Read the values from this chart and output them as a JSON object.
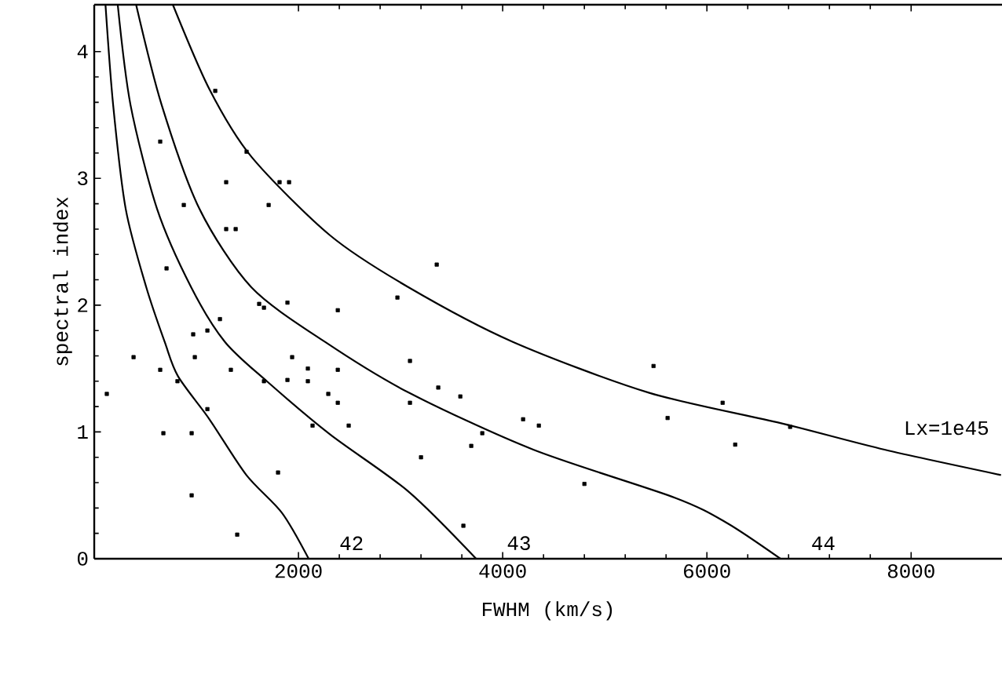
{
  "chart_data": {
    "type": "scatter",
    "xlabel": "FWHM (km/s)",
    "ylabel": "spectral index",
    "xlim": [
      0,
      8890
    ],
    "ylim": [
      0,
      4.37
    ],
    "xticks": [
      2000,
      4000,
      6000,
      8000
    ],
    "yticks": [
      0,
      1,
      2,
      3,
      4
    ],
    "grid": false,
    "series": [
      {
        "type": "line",
        "name": "42",
        "color": "#000000",
        "x": [
          110,
          185,
          308,
          510,
          690,
          820,
          1128,
          1490,
          1840,
          2100
        ],
        "values": [
          4.37,
          3.58,
          2.76,
          2.14,
          1.71,
          1.44,
          1.1,
          0.66,
          0.36,
          0
        ]
      },
      {
        "type": "line",
        "name": "43",
        "color": "#000000",
        "x": [
          230,
          355,
          615,
          950,
          1280,
          1690,
          2310,
          3077,
          3740
        ],
        "values": [
          4.37,
          3.58,
          2.76,
          2.14,
          1.71,
          1.4,
          0.98,
          0.53,
          0
        ]
      },
      {
        "type": "line",
        "name": "44",
        "color": "#000000",
        "x": [
          410,
          660,
          1030,
          1540,
          2260,
          3080,
          4300,
          5690,
          6200,
          6720
        ],
        "values": [
          4.37,
          3.58,
          2.76,
          2.14,
          1.71,
          1.31,
          0.86,
          0.48,
          0.28,
          0
        ]
      },
      {
        "type": "line",
        "name": "Lx=1e45",
        "color": "#000000",
        "x": [
          770,
          1130,
          1540,
          2310,
          3080,
          4100,
          5430,
          6720,
          7740,
          8880
        ],
        "values": [
          4.37,
          3.7,
          3.17,
          2.55,
          2.14,
          1.71,
          1.31,
          1.07,
          0.86,
          0.66
        ]
      },
      {
        "marker": "square",
        "color": "#000000",
        "x": [
          1185,
          646,
          1492,
          1292,
          1815,
          1908,
          877,
          1708,
          1292,
          1385,
          3354,
          708,
          2969,
          1615,
          1662,
          2385,
          1892,
          1231,
          969,
          1108,
          385,
          646,
          985,
          1338,
          1938,
          2092,
          2092,
          2385,
          1892,
          1662,
          815,
          123,
          2292,
          2385,
          3092,
          3369,
          3585,
          3092,
          1108,
          4200,
          4354,
          2492,
          2138,
          677,
          954,
          3800,
          3692,
          3200,
          1800,
          954,
          1400,
          3615,
          5477,
          6154,
          5615,
          6277,
          4800,
          6815
        ],
        "values": [
          3.69,
          3.29,
          3.21,
          2.97,
          2.97,
          2.97,
          2.79,
          2.79,
          2.6,
          2.6,
          2.32,
          2.29,
          2.06,
          2.01,
          1.98,
          1.96,
          2.02,
          1.89,
          1.77,
          1.8,
          1.59,
          1.49,
          1.59,
          1.49,
          1.59,
          1.5,
          1.4,
          1.49,
          1.41,
          1.4,
          1.4,
          1.3,
          1.3,
          1.23,
          1.56,
          1.35,
          1.28,
          1.23,
          1.18,
          1.1,
          1.05,
          1.05,
          1.05,
          0.99,
          0.99,
          0.99,
          0.89,
          0.8,
          0.68,
          0.5,
          0.19,
          0.26,
          1.52,
          1.23,
          1.11,
          0.9,
          0.59,
          1.04
        ]
      }
    ]
  }
}
